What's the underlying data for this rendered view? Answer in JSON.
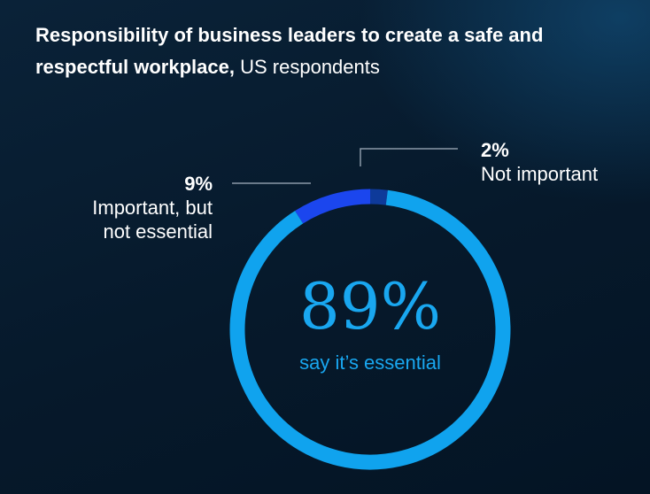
{
  "header": {
    "title_bold": "Responsibility of business leaders to create a safe and respectful workplace,",
    "title_regular": "US respondents"
  },
  "chart_data": {
    "type": "pie",
    "donut": true,
    "categories": [
      "say it’s essential",
      "Important, but not essential",
      "Not important"
    ],
    "values": [
      89,
      9,
      2
    ],
    "unit": "%",
    "colors": [
      "#10a3ee",
      "#1b46ee",
      "#0e3a9a"
    ],
    "center": {
      "value": "89%",
      "label": "say it’s essential"
    },
    "callouts": [
      {
        "value": "9%",
        "label_line1": "Important, but",
        "label_line2": "not essential"
      },
      {
        "value": "2%",
        "label_line1": "Not important"
      }
    ]
  }
}
